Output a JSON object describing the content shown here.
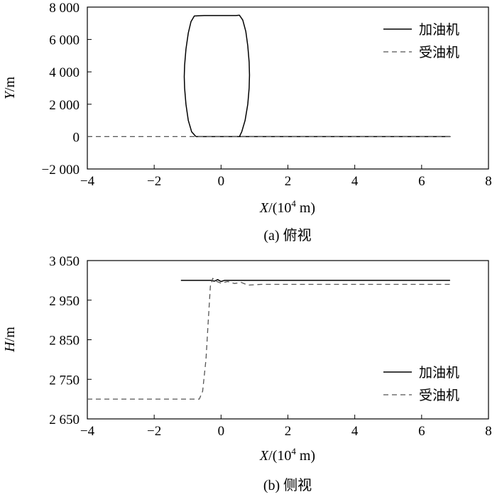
{
  "chart_data": [
    {
      "type": "line",
      "panel_caption": "(a) 俯视",
      "xlabel_var": "X",
      "xlabel_unit": "/(10",
      "xlabel_exp": "4",
      "xlabel_tail": " m)",
      "ylabel_var": "Y",
      "ylabel_unit": "/m",
      "xlim": [
        -4,
        8
      ],
      "ylim": [
        -2000,
        8000
      ],
      "x_ticks": [
        -4,
        -2,
        0,
        2,
        4,
        6,
        8
      ],
      "y_ticks": [
        -2000,
        0,
        2000,
        4000,
        6000,
        8000
      ],
      "x_tick_labels": [
        "−4",
        "−2",
        "0",
        "2",
        "4",
        "6",
        "8"
      ],
      "y_tick_labels": [
        "−2 000",
        "0",
        "2 000",
        "4 000",
        "6 000",
        "8 000"
      ],
      "legend_position": "top-right",
      "series": [
        {
          "name": "加油机",
          "style": "solid",
          "x": [
            -0.75,
            6.85,
            6.85,
            0.55,
            0.62,
            0.72,
            0.8,
            0.84,
            0.85,
            0.84,
            0.8,
            0.74,
            0.65,
            0.55,
            0.45,
            -0.5,
            -0.8,
            -0.9,
            -0.98,
            -1.05,
            -1.09,
            -1.1,
            -1.09,
            -1.05,
            -0.98,
            -0.88,
            -0.75
          ],
          "y": [
            0,
            0,
            0,
            0,
            300,
            1000,
            2000,
            3000,
            3800,
            4600,
            5600,
            6500,
            7200,
            7500,
            7480,
            7480,
            7450,
            7100,
            6400,
            5400,
            4400,
            3700,
            3000,
            2000,
            1000,
            300,
            0
          ]
        },
        {
          "name": "受油机",
          "style": "dashed",
          "x": [
            -4,
            6.85
          ],
          "y": [
            0,
            0
          ]
        }
      ]
    },
    {
      "type": "line",
      "panel_caption": "(b) 侧视",
      "xlabel_var": "X",
      "xlabel_unit": "/(10",
      "xlabel_exp": "4",
      "xlabel_tail": " m)",
      "ylabel_var": "H",
      "ylabel_unit": "/m",
      "xlim": [
        -4,
        8
      ],
      "ylim": [
        2650,
        3050
      ],
      "x_ticks": [
        -4,
        -2,
        0,
        2,
        4,
        6,
        8
      ],
      "y_ticks": [
        2650,
        2750,
        2850,
        2950,
        3050
      ],
      "x_tick_labels": [
        "−4",
        "−2",
        "0",
        "2",
        "4",
        "6",
        "8"
      ],
      "y_tick_labels": [
        "2 650",
        "2 750",
        "2 850",
        "2 950",
        "3 050"
      ],
      "legend_position": "bottom-right",
      "series": [
        {
          "name": "加油机",
          "style": "solid",
          "x": [
            -1.2,
            -0.3,
            -0.2,
            -0.1,
            0,
            0.1,
            0.2,
            6.85
          ],
          "y": [
            3000,
            3000,
            2998,
            3002,
            2997,
            3000,
            3000,
            3000
          ]
        },
        {
          "name": "受油机",
          "style": "dashed",
          "x": [
            -4,
            -0.65,
            -0.55,
            -0.45,
            -0.38,
            -0.32,
            -0.25,
            -0.15,
            0,
            0.2,
            0.4,
            0.6,
            0.8,
            1.2,
            2,
            4,
            6,
            6.85
          ],
          "y": [
            2700,
            2700,
            2720,
            2800,
            2900,
            2985,
            3005,
            2998,
            2993,
            2997,
            2992,
            2995,
            2988,
            2990,
            2990,
            2990,
            2990,
            2990
          ]
        }
      ]
    }
  ]
}
